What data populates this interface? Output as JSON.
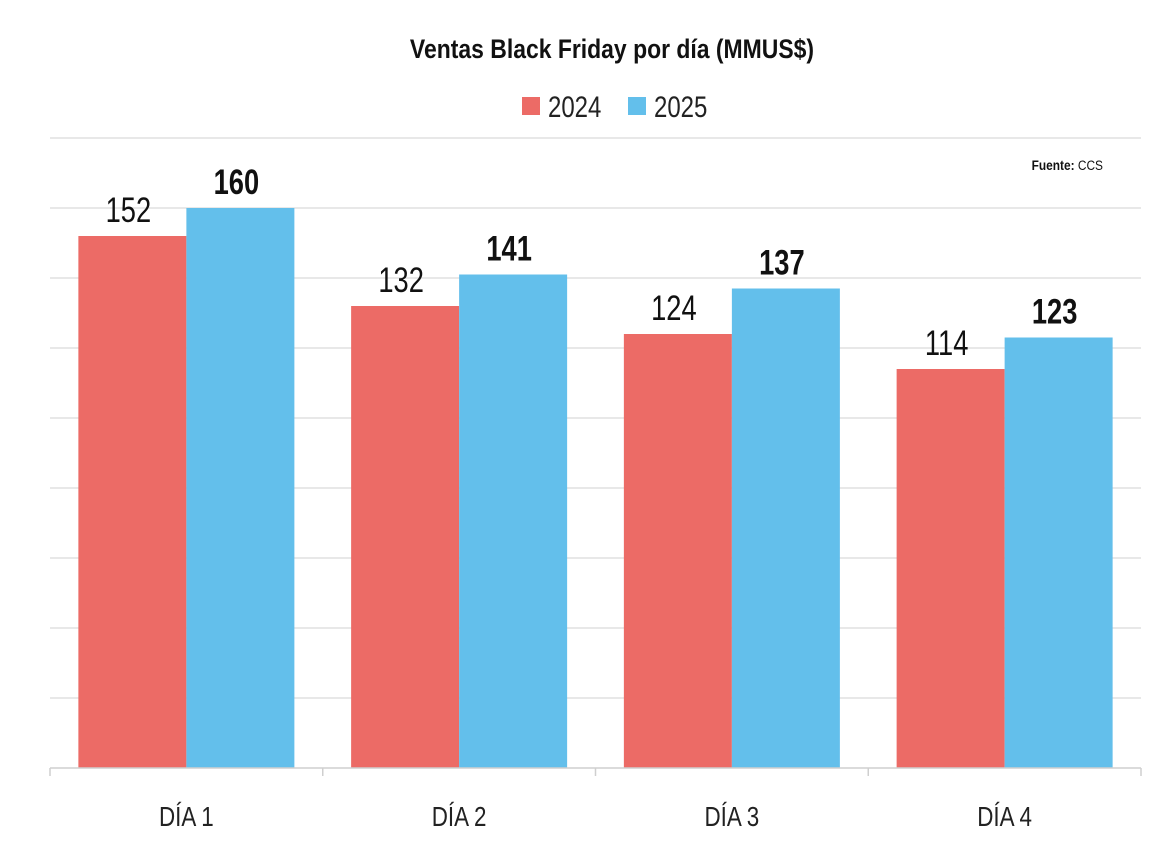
{
  "chart_data": {
    "type": "bar",
    "title": "Ventas Black Friday por día (MMUS$)",
    "source_label": "Fuente:",
    "source_value": "CCS",
    "categories": [
      "DÍA 1",
      "DÍA 2",
      "DÍA 3",
      "DÍA 4"
    ],
    "series": [
      {
        "name": "2024",
        "color": "#EC6B66",
        "values": [
          152,
          132,
          124,
          114
        ]
      },
      {
        "name": "2025",
        "color": "#63BFEB",
        "values": [
          160,
          141,
          137,
          123
        ]
      }
    ],
    "xlabel": "",
    "ylabel": "",
    "ylim": [
      0,
      180
    ],
    "ytick_step": 20,
    "grid": true,
    "legend_position": "top-center"
  }
}
